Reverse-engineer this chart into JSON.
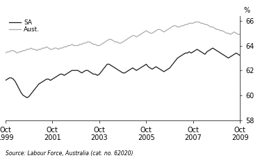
{
  "title": "",
  "ylabel": "%",
  "source_text": "Source: Labour Force, Australia (cat. no. 62020)",
  "legend_SA": "SA",
  "legend_Aust": "Aust.",
  "color_SA": "#1a1a1a",
  "color_Aust": "#aaaaaa",
  "linewidth": 0.9,
  "ylim": [
    58,
    66.4
  ],
  "yticks": [
    58,
    60,
    62,
    64,
    66
  ],
  "xtick_labels": [
    "Oct\n1999",
    "Oct\n2001",
    "Oct\n2003",
    "Oct\n2005",
    "Oct\n2007",
    "Oct\n2009"
  ],
  "xtick_positions": [
    0,
    24,
    48,
    72,
    96,
    120
  ],
  "n_points": 121,
  "SA_data": [
    61.2,
    61.3,
    61.4,
    61.4,
    61.3,
    61.1,
    60.8,
    60.5,
    60.2,
    60.0,
    59.9,
    59.8,
    59.9,
    60.1,
    60.3,
    60.5,
    60.7,
    60.9,
    61.0,
    61.1,
    61.2,
    61.3,
    61.3,
    61.2,
    61.3,
    61.4,
    61.5,
    61.6,
    61.7,
    61.7,
    61.6,
    61.7,
    61.8,
    61.9,
    62.0,
    62.0,
    62.0,
    62.0,
    61.9,
    61.8,
    61.9,
    62.0,
    62.0,
    61.9,
    61.8,
    61.7,
    61.7,
    61.6,
    61.7,
    61.9,
    62.1,
    62.3,
    62.5,
    62.5,
    62.4,
    62.3,
    62.2,
    62.1,
    62.0,
    61.9,
    61.8,
    61.8,
    61.9,
    62.0,
    62.1,
    62.2,
    62.1,
    62.0,
    62.1,
    62.2,
    62.3,
    62.4,
    62.5,
    62.3,
    62.2,
    62.1,
    62.2,
    62.3,
    62.2,
    62.1,
    62.0,
    61.9,
    62.0,
    62.1,
    62.2,
    62.4,
    62.6,
    62.8,
    63.0,
    63.1,
    63.2,
    63.3,
    63.4,
    63.4,
    63.5,
    63.4,
    63.5,
    63.6,
    63.7,
    63.6,
    63.5,
    63.4,
    63.3,
    63.5,
    63.6,
    63.7,
    63.8,
    63.7,
    63.6,
    63.5,
    63.4,
    63.3,
    63.2,
    63.1,
    63.0,
    63.1,
    63.2,
    63.3,
    63.4,
    63.3,
    63.2
  ],
  "Aust_data": [
    63.4,
    63.5,
    63.5,
    63.6,
    63.6,
    63.5,
    63.4,
    63.5,
    63.5,
    63.6,
    63.6,
    63.7,
    63.7,
    63.8,
    63.7,
    63.7,
    63.6,
    63.7,
    63.7,
    63.8,
    63.8,
    63.9,
    63.8,
    63.7,
    63.7,
    63.8,
    63.8,
    63.7,
    63.8,
    63.8,
    63.9,
    63.9,
    64.0,
    64.0,
    64.1,
    64.0,
    64.0,
    64.0,
    64.1,
    64.1,
    64.2,
    64.2,
    64.3,
    64.3,
    64.2,
    64.1,
    64.1,
    64.0,
    64.0,
    64.1,
    64.2,
    64.3,
    64.4,
    64.5,
    64.5,
    64.4,
    64.3,
    64.3,
    64.2,
    64.2,
    64.3,
    64.4,
    64.5,
    64.6,
    64.7,
    64.8,
    64.8,
    64.7,
    64.8,
    64.9,
    65.0,
    65.1,
    65.2,
    65.1,
    65.0,
    65.0,
    65.1,
    65.2,
    65.3,
    65.3,
    65.2,
    65.1,
    65.2,
    65.3,
    65.4,
    65.5,
    65.6,
    65.6,
    65.5,
    65.5,
    65.6,
    65.6,
    65.7,
    65.7,
    65.8,
    65.8,
    65.8,
    65.9,
    65.9,
    65.9,
    65.8,
    65.8,
    65.7,
    65.7,
    65.6,
    65.5,
    65.5,
    65.4,
    65.3,
    65.3,
    65.2,
    65.2,
    65.1,
    65.0,
    65.0,
    64.9,
    65.0,
    65.1,
    65.0,
    64.9,
    64.9
  ]
}
